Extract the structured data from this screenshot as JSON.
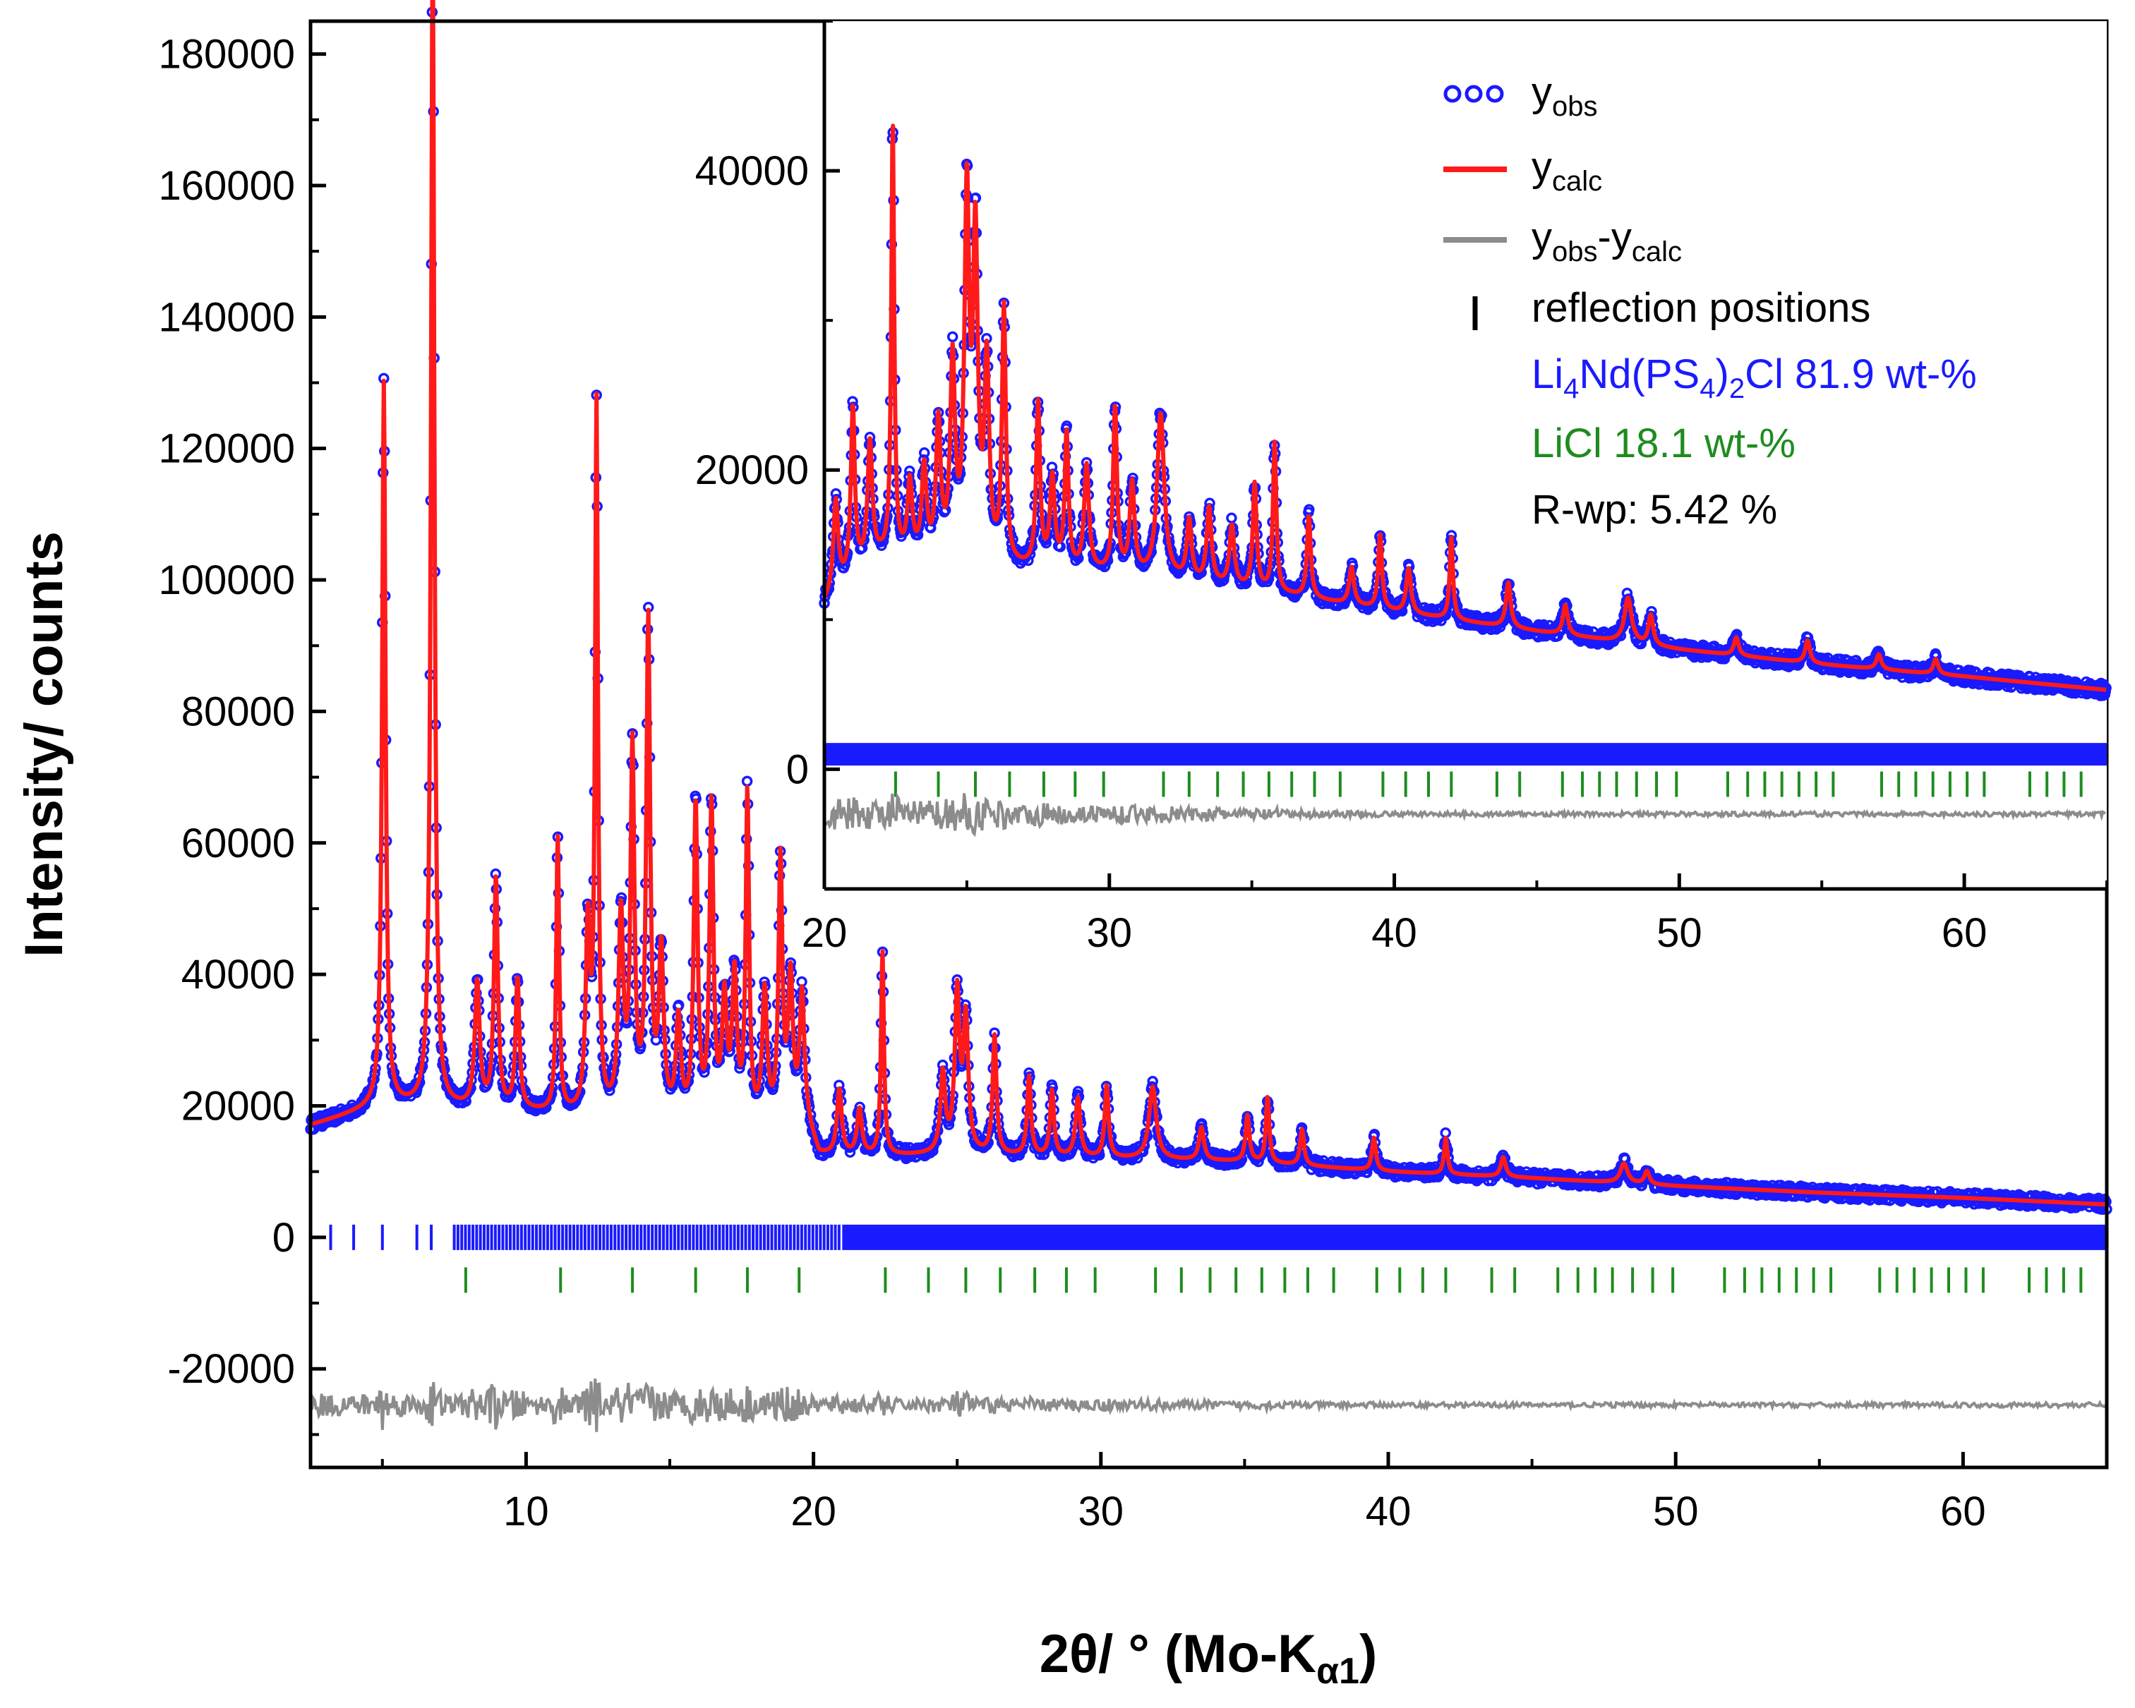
{
  "chart_data": [
    {
      "type": "line",
      "panel": "main",
      "xlabel": "2θ/ ° (Mo-K",
      "xlabel_sub": "α1",
      "xlabel_end": ")",
      "ylabel": "Intensity/ counts",
      "xlim": [
        2.5,
        65
      ],
      "ylim": [
        -35000,
        185000
      ],
      "x_ticks": [
        10,
        20,
        30,
        40,
        50,
        60
      ],
      "y_ticks": [
        -20000,
        0,
        20000,
        40000,
        60000,
        80000,
        100000,
        120000,
        140000,
        160000,
        180000
      ],
      "background_profile": [
        [
          2.5,
          17000
        ],
        [
          5,
          20000
        ],
        [
          7,
          19500
        ],
        [
          10,
          19000
        ],
        [
          14,
          17500
        ],
        [
          17,
          16500
        ],
        [
          19.8,
          16000
        ],
        [
          20.2,
          12000
        ],
        [
          25,
          12500
        ],
        [
          30,
          12000
        ],
        [
          35,
          11500
        ],
        [
          40,
          10000
        ],
        [
          45,
          9000
        ],
        [
          50,
          7800
        ],
        [
          55,
          6800
        ],
        [
          60,
          6000
        ],
        [
          65,
          5000
        ]
      ],
      "peaks": [
        [
          5.05,
          110000,
          0.07
        ],
        [
          6.75,
          178000,
          0.07
        ],
        [
          8.3,
          19000,
          0.1
        ],
        [
          8.95,
          35000,
          0.08
        ],
        [
          9.7,
          20000,
          0.08
        ],
        [
          11.1,
          42000,
          0.06
        ],
        [
          12.15,
          28000,
          0.09
        ],
        [
          12.45,
          107000,
          0.06
        ],
        [
          13.3,
          30000,
          0.1
        ],
        [
          13.7,
          55000,
          0.08
        ],
        [
          14.25,
          75000,
          0.08
        ],
        [
          14.7,
          25000,
          0.1
        ],
        [
          15.3,
          15000,
          0.1
        ],
        [
          15.9,
          48000,
          0.08
        ],
        [
          16.45,
          48000,
          0.08
        ],
        [
          16.9,
          18000,
          0.1
        ],
        [
          17.25,
          22000,
          0.1
        ],
        [
          17.7,
          50000,
          0.07
        ],
        [
          18.3,
          20000,
          0.1
        ],
        [
          18.85,
          40000,
          0.08
        ],
        [
          19.2,
          22000,
          0.1
        ],
        [
          19.6,
          20000,
          0.1
        ],
        [
          20.9,
          10000,
          0.1
        ],
        [
          21.6,
          7000,
          0.1
        ],
        [
          22.4,
          31000,
          0.06
        ],
        [
          24.5,
          12000,
          0.1
        ],
        [
          25.0,
          24000,
          0.1
        ],
        [
          25.3,
          20000,
          0.1
        ],
        [
          26.3,
          18000,
          0.08
        ],
        [
          27.5,
          12000,
          0.08
        ],
        [
          28.3,
          10000,
          0.08
        ],
        [
          29.2,
          9000,
          0.1
        ],
        [
          30.2,
          11000,
          0.08
        ],
        [
          31.8,
          11000,
          0.15
        ],
        [
          33.5,
          5000,
          0.1
        ],
        [
          35.1,
          7000,
          0.08
        ],
        [
          35.8,
          10000,
          0.07
        ],
        [
          37.0,
          5500,
          0.08
        ],
        [
          39.5,
          5000,
          0.08
        ],
        [
          42.0,
          5500,
          0.07
        ],
        [
          44.0,
          3000,
          0.1
        ],
        [
          48.2,
          3000,
          0.15
        ],
        [
          49.0,
          2000,
          0.1
        ]
      ],
      "ticks_phase1": {
        "y": 0,
        "dense_from": 7.5,
        "x_sparse": [
          3.2,
          4.0,
          5.0,
          6.2,
          6.7
        ]
      },
      "ticks_phase2": {
        "y": -6500,
        "x": [
          7.9,
          11.2,
          13.7,
          15.9,
          17.7,
          19.5,
          22.5,
          24,
          25.3,
          26.5,
          27.7,
          28.8,
          29.8,
          31.9,
          32.8,
          33.8,
          34.7,
          35.6,
          36.4,
          37.2,
          38.1,
          39.6,
          40.4,
          41.2,
          42.0,
          43.6,
          44.4,
          45.9,
          46.6,
          47.2,
          47.8,
          48.5,
          49.2,
          49.9,
          51.7,
          52.4,
          53.0,
          53.6,
          54.2,
          54.8,
          55.4,
          57.1,
          57.7,
          58.3,
          58.9,
          59.5,
          60.1,
          60.7,
          62.3,
          62.9,
          63.5,
          64.1
        ]
      },
      "difference": {
        "offset": -25500,
        "amplitude": {
          "low_angle": 6000,
          "high_angle": 1200
        }
      }
    },
    {
      "type": "line",
      "panel": "inset",
      "xlim": [
        20,
        65
      ],
      "ylim": [
        -8000,
        50000
      ],
      "x_ticks": [
        20,
        30,
        40,
        50,
        60
      ],
      "y_ticks": [
        0,
        20000,
        40000
      ],
      "background_profile": [
        [
          20,
          11000
        ],
        [
          21,
          13000
        ],
        [
          22,
          14000
        ],
        [
          25,
          13500
        ],
        [
          30,
          13000
        ],
        [
          35,
          12000
        ],
        [
          40,
          10500
        ],
        [
          45,
          9200
        ],
        [
          50,
          8000
        ],
        [
          55,
          7000
        ],
        [
          60,
          6200
        ],
        [
          65,
          5300
        ]
      ],
      "peaks": [
        [
          20.4,
          6000,
          0.1
        ],
        [
          21.0,
          11000,
          0.08
        ],
        [
          21.6,
          8000,
          0.1
        ],
        [
          22.4,
          29000,
          0.06
        ],
        [
          23.0,
          5000,
          0.1
        ],
        [
          23.5,
          6000,
          0.1
        ],
        [
          24.0,
          9000,
          0.1
        ],
        [
          24.5,
          13000,
          0.1
        ],
        [
          25.0,
          24000,
          0.1
        ],
        [
          25.3,
          21000,
          0.1
        ],
        [
          25.7,
          13000,
          0.1
        ],
        [
          26.3,
          17000,
          0.08
        ],
        [
          27.5,
          11000,
          0.08
        ],
        [
          28.0,
          6000,
          0.1
        ],
        [
          28.5,
          9000,
          0.08
        ],
        [
          29.2,
          7000,
          0.1
        ],
        [
          30.2,
          11000,
          0.08
        ],
        [
          30.8,
          6000,
          0.1
        ],
        [
          31.8,
          11000,
          0.15
        ],
        [
          32.8,
          4000,
          0.1
        ],
        [
          33.5,
          5000,
          0.1
        ],
        [
          34.3,
          4000,
          0.1
        ],
        [
          35.1,
          7000,
          0.08
        ],
        [
          35.8,
          10000,
          0.07
        ],
        [
          37.0,
          5500,
          0.08
        ],
        [
          38.5,
          2500,
          0.1
        ],
        [
          39.5,
          5000,
          0.08
        ],
        [
          40.5,
          3000,
          0.1
        ],
        [
          42.0,
          5500,
          0.07
        ],
        [
          44.0,
          3000,
          0.1
        ],
        [
          46.0,
          2000,
          0.1
        ],
        [
          48.2,
          3000,
          0.15
        ],
        [
          49.0,
          2000,
          0.1
        ],
        [
          52.0,
          1200,
          0.1
        ],
        [
          54.5,
          1500,
          0.1
        ],
        [
          57.0,
          1000,
          0.1
        ],
        [
          59.0,
          1000,
          0.1
        ]
      ],
      "ticks_phase1": {
        "y": 1000
      },
      "ticks_phase2": {
        "y": -1000,
        "x": [
          22.5,
          24,
          25.3,
          26.5,
          27.7,
          28.8,
          29.8,
          31.9,
          32.8,
          33.8,
          34.7,
          35.6,
          36.4,
          37.2,
          38.1,
          39.6,
          40.4,
          41.2,
          42.0,
          43.6,
          44.4,
          45.9,
          46.6,
          47.2,
          47.8,
          48.5,
          49.2,
          49.9,
          51.7,
          52.4,
          53.0,
          53.6,
          54.2,
          54.8,
          55.4,
          57.1,
          57.7,
          58.3,
          58.9,
          59.5,
          60.1,
          60.7,
          62.3,
          62.9,
          63.5,
          64.1
        ]
      },
      "difference": {
        "offset": -3000,
        "amplitude": {
          "low_angle": 2800,
          "high_angle": 500
        }
      }
    }
  ],
  "legend": {
    "placement": "inset-top-right",
    "entries": [
      {
        "label": "y",
        "sub": "obs",
        "marker": "circles",
        "color": "#1a1aff"
      },
      {
        "label": "y",
        "sub": "calc",
        "marker": "line",
        "color": "#ff1a1a"
      },
      {
        "label": "y",
        "sub": "obs",
        "mid": "-y",
        "sub2": "calc",
        "marker": "line",
        "color": "#8c8c8c"
      },
      {
        "label": "reflection positions",
        "marker": "bar",
        "color": "#000000"
      }
    ],
    "annotations": [
      {
        "parts": [
          "Li",
          "4",
          "Nd(PS",
          "4",
          ")",
          "2",
          "Cl 81.9 wt-%"
        ],
        "color": "#1a1aff"
      },
      {
        "text": "LiCl 18.1 wt-%",
        "color": "#1e8c1e"
      },
      {
        "text": "R-wp: 5.42 %",
        "color": "#000000"
      }
    ]
  },
  "colors": {
    "observed": "#1a1aff",
    "calculated": "#ff1a1a",
    "difference": "#8c8c8c",
    "phase1_ticks": "#1a1aff",
    "phase2_ticks": "#1e8c1e",
    "axes": "#000000"
  }
}
